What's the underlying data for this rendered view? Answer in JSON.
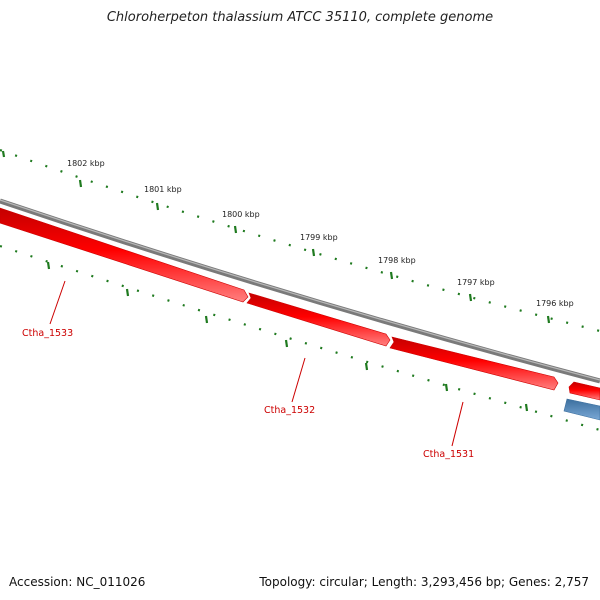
{
  "title": "Chloroherpeton thalassium ATCC 35110, complete genome",
  "footer": {
    "accession": "Accession: NC_011026",
    "summary": "Topology: circular; Length: 3,293,456 bp; Genes: 2,757"
  },
  "colors": {
    "backbone": "#7a7a7a",
    "forward_gene": "#e60000",
    "forward_gene_highlight": "#ff6666",
    "reverse_gene": "#4f86b8",
    "tick": "#1f7a1f",
    "gene_label": "#cc0000"
  },
  "ruler": {
    "unit": "kbp",
    "labels": [
      "1802 kbp",
      "1801 kbp",
      "1800 kbp",
      "1799 kbp",
      "1798 kbp",
      "1797 kbp",
      "1796 kbp"
    ]
  },
  "genes": [
    {
      "label": "Ctha_1533",
      "strand": "forward"
    },
    {
      "label": "Ctha_1532",
      "strand": "forward"
    },
    {
      "label": "Ctha_1531",
      "strand": "forward"
    },
    {
      "label": "",
      "strand": "forward"
    },
    {
      "label": "",
      "strand": "reverse"
    }
  ]
}
